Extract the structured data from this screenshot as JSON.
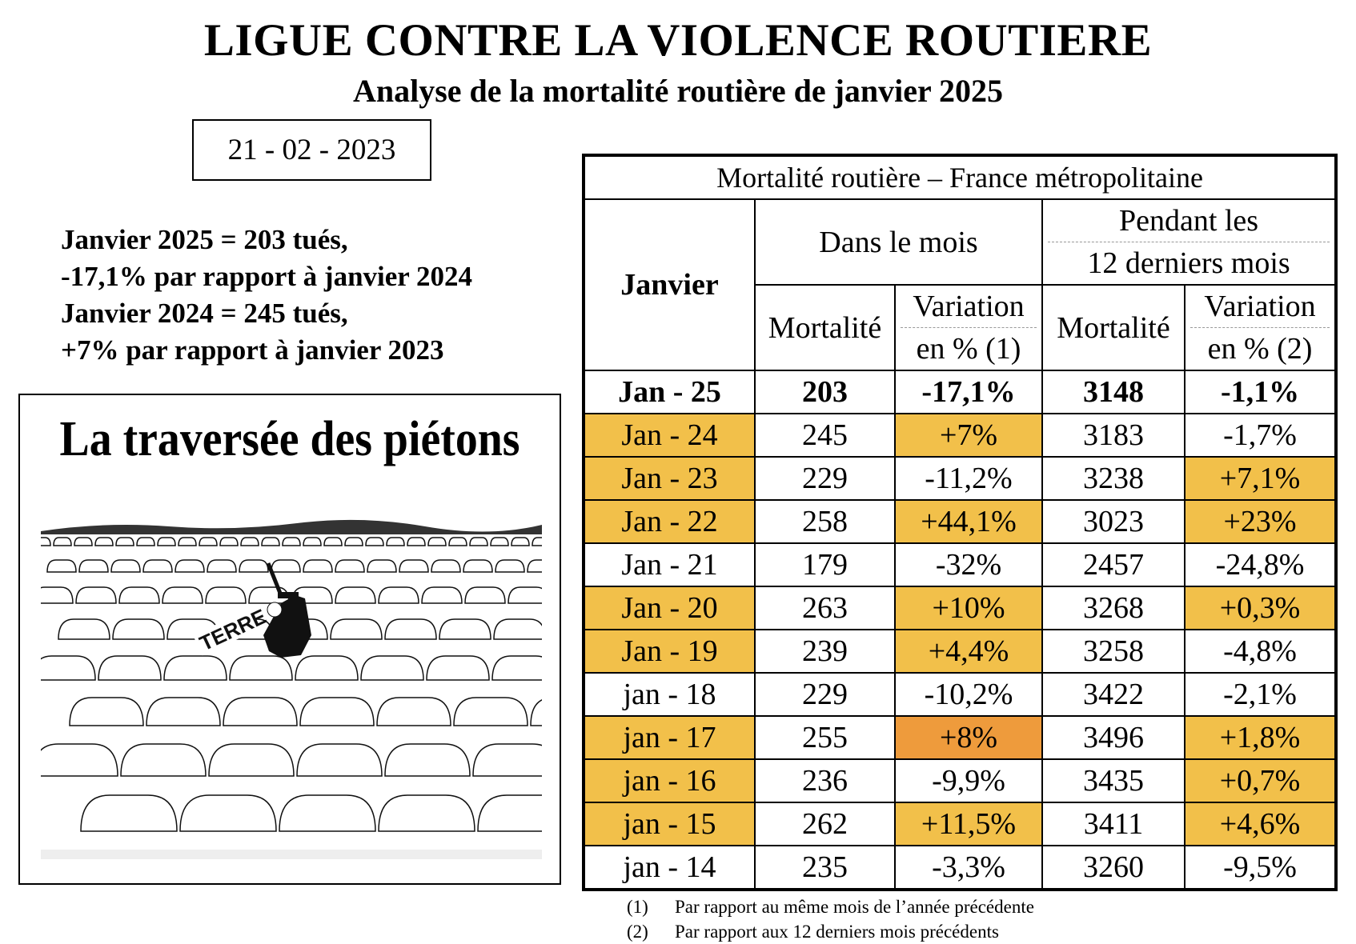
{
  "title": "LIGUE CONTRE LA VIOLENCE ROUTIERE",
  "subtitle": "Analyse de la mortalité routière de janvier 2025",
  "date": "21 - 02 - 2023",
  "summary": [
    "Janvier 2025 = 203 tués,",
    "-17,1% par rapport à janvier 2024",
    "Janvier 2024 = 245 tués,",
    "+7% par rapport à janvier 2023"
  ],
  "cartoon": {
    "title": "La traversée des piétons",
    "sign_text": "TERRE"
  },
  "table": {
    "caption": "Mortalité routière – France métropolitaine",
    "col_janvier": "Janvier",
    "group_month": "Dans le mois",
    "group_12_line1": "Pendant les",
    "group_12_line2": "12 derniers mois",
    "col_mortalite": "Mortalité",
    "col_variation_1a": "Variation",
    "col_variation_1b": "en % (1)",
    "col_mortalite_2": "Mortalité",
    "col_variation_2a": "Variation",
    "col_variation_2b": "en % (2)",
    "highlight_colors": {
      "yellow": "#f2c04a",
      "orange": "#ee9b3c"
    },
    "rows": [
      {
        "label": "Jan - 25",
        "m": "203",
        "v1": "-17,1%",
        "m12": "3148",
        "v2": "-1,1%",
        "hl_label": "",
        "hl_v1": "",
        "hl_v2": ""
      },
      {
        "label": "Jan - 24",
        "m": "245",
        "v1": "+7%",
        "m12": "3183",
        "v2": "-1,7%",
        "hl_label": "y",
        "hl_v1": "y",
        "hl_v2": ""
      },
      {
        "label": "Jan - 23",
        "m": "229",
        "v1": "-11,2%",
        "m12": "3238",
        "v2": "+7,1%",
        "hl_label": "y",
        "hl_v1": "",
        "hl_v2": "y"
      },
      {
        "label": "Jan - 22",
        "m": "258",
        "v1": "+44,1%",
        "m12": "3023",
        "v2": "+23%",
        "hl_label": "y",
        "hl_v1": "y",
        "hl_v2": "y"
      },
      {
        "label": "Jan - 21",
        "m": "179",
        "v1": "-32%",
        "m12": "2457",
        "v2": "-24,8%",
        "hl_label": "",
        "hl_v1": "",
        "hl_v2": ""
      },
      {
        "label": "Jan - 20",
        "m": "263",
        "v1": "+10%",
        "m12": "3268",
        "v2": "+0,3%",
        "hl_label": "y",
        "hl_v1": "y",
        "hl_v2": "y"
      },
      {
        "label": "Jan - 19",
        "m": "239",
        "v1": "+4,4%",
        "m12": "3258",
        "v2": "-4,8%",
        "hl_label": "y",
        "hl_v1": "y",
        "hl_v2": ""
      },
      {
        "label": "jan - 18",
        "m": "229",
        "v1": "-10,2%",
        "m12": "3422",
        "v2": "-2,1%",
        "hl_label": "",
        "hl_v1": "",
        "hl_v2": ""
      },
      {
        "label": "jan - 17",
        "m": "255",
        "v1": "+8%",
        "m12": "3496",
        "v2": "+1,8%",
        "hl_label": "y",
        "hl_v1": "o",
        "hl_v2": "y"
      },
      {
        "label": "jan - 16",
        "m": "236",
        "v1": "-9,9%",
        "m12": "3435",
        "v2": "+0,7%",
        "hl_label": "y",
        "hl_v1": "",
        "hl_v2": "y"
      },
      {
        "label": "jan - 15",
        "m": "262",
        "v1": "+11,5%",
        "m12": "3411",
        "v2": "+4,6%",
        "hl_label": "y",
        "hl_v1": "y",
        "hl_v2": "y"
      },
      {
        "label": "jan - 14",
        "m": "235",
        "v1": "-3,3%",
        "m12": "3260",
        "v2": "-9,5%",
        "hl_label": "",
        "hl_v1": "",
        "hl_v2": ""
      }
    ]
  },
  "footnotes": [
    {
      "num": "(1)",
      "text": "Par rapport au même mois de l’année précédente"
    },
    {
      "num": "(2)",
      "text": "Par rapport aux 12 derniers mois précédents"
    }
  ]
}
